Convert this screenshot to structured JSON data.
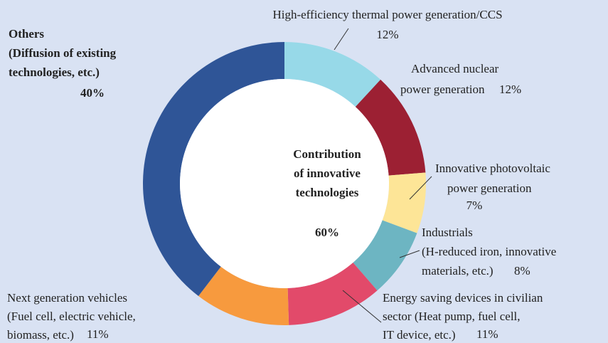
{
  "chart_data": {
    "type": "donut",
    "categories": [
      [
        "High-efficiency thermal power generation/CCS"
      ],
      [
        "Advanced nuclear",
        "power generation"
      ],
      [
        "Innovative photovoltaic",
        "power generation"
      ],
      [
        "Industrials",
        "(H-reduced iron, innovative",
        "materials, etc.)"
      ],
      [
        "Energy saving devices in civilian",
        "sector (Heat pump, fuel cell,",
        "IT device, etc.)"
      ],
      [
        "Next generation vehicles",
        "(Fuel cell, electric vehicle,",
        "biomass, etc.)"
      ],
      [
        "Others",
        "(Diffusion of existing",
        "technologies, etc.)"
      ]
    ],
    "values": [
      12,
      12,
      7,
      8,
      11,
      11,
      40
    ],
    "value_labels": [
      "12%",
      "12%",
      "7%",
      "8%",
      "11%",
      "11%",
      "40%"
    ],
    "colors": [
      "#97d9e8",
      "#9c2033",
      "#fde597",
      "#6db5c2",
      "#e24a6a",
      "#f79a3e",
      "#2f5597"
    ],
    "center_text": [
      "Contribution",
      "of innovative",
      "technologies"
    ],
    "center_percent": "60%"
  }
}
